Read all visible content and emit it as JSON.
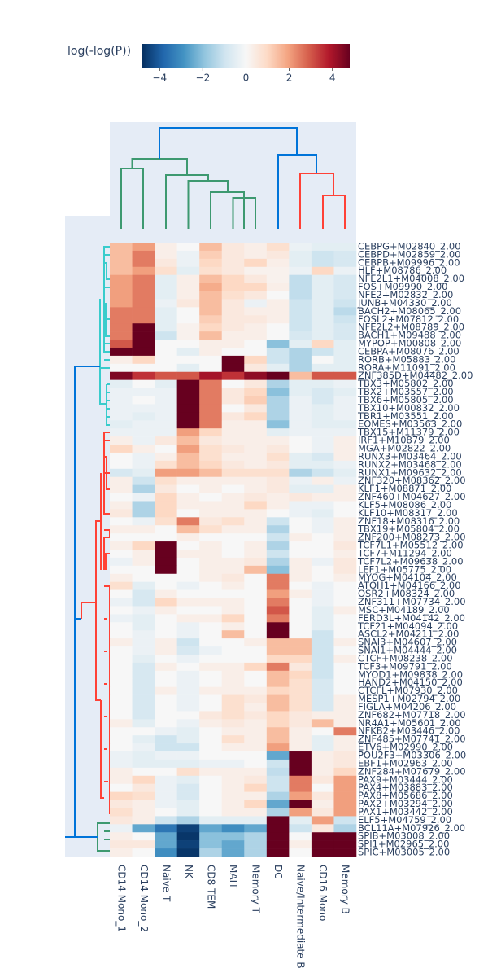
{
  "chart_data": {
    "type": "heatmap",
    "colorbar_title": "log(-log(P))",
    "zlim": [
      -4.8,
      4.8
    ],
    "colorbar_ticks": [
      {
        "value": -4,
        "label": "−4"
      },
      {
        "value": -2,
        "label": "−2"
      },
      0,
      2,
      4
    ],
    "colorscale": [
      "#053061",
      "#2166ac",
      "#4393c3",
      "#92c5de",
      "#d1e5f0",
      "#f7f7f7",
      "#fddbc7",
      "#f4a582",
      "#d6604d",
      "#b2182b",
      "#67001f"
    ],
    "x": [
      "CD14 Mono_1",
      "CD14 Mono_2",
      "Naive T",
      "NK",
      "CD8 TEM",
      "MAIT",
      "Memory T",
      "DC",
      "Naive/Intermediate B",
      "CD16 Mono",
      "Memory B"
    ],
    "y": [
      "CEBPG+M02840_2.00",
      "CEBPD+M02859_2.00",
      "CEBPB+M09996_2.00",
      "HLF+M08786_2.00",
      "NFE2L1+M04008_2.00",
      "FOS+M09990_2.00",
      "NFE2+M02832_2.00",
      "JUNB+M04330_2.00",
      "BACH2+M08065_2.00",
      "FOSL2+M07812_2.00",
      "NFE2L2+M08789_2.00",
      "BACH1+M09488_2.00",
      "MYPOP+M00808_2.00",
      "CEBPA+M08076_2.00",
      "RORB+M05883_2.00",
      "RORA+M11091_2.00",
      "ZNF385D+M04482_2.00",
      "TBX3+M05802_2.00",
      "TBX2+M03557_2.00",
      "TBX6+M05805_2.00",
      "TBX10+M00832_2.00",
      "TBR1+M03551_2.00",
      "EOMES+M03563_2.00",
      "TBX15+M11379_2.00",
      "IRF1+M10879_2.00",
      "MGA+M02822_2.00",
      "RUNX3+M03464_2.00",
      "RUNX2+M03468_2.00",
      "RUNX1+M09632_2.00",
      "ZNF320+M08362_2.00",
      "KLF1+M08871_2.00",
      "ZNF460+M04627_2.00",
      "KLF5+M08086_2.00",
      "KLF10+M08317_2.00",
      "ZNF18+M08316_2.00",
      "TBX19+M05804_2.00",
      "ZNF200+M08273_2.00",
      "TCF7L1+M05512_2.00",
      "TCF7+M11294_2.00",
      "TCF7L2+M09638_2.00",
      "LEF1+M05775_2.00",
      "MYOG+M04104_2.00",
      "ATOH1+M04166_2.00",
      "OSR2+M08324_2.00",
      "ZNF311+M07734_2.00",
      "MSC+M04189_2.00",
      "FERD3L+M04142_2.00",
      "TCF21+M04094_2.00",
      "ASCL2+M04211_2.00",
      "SNAI3+M04607_2.00",
      "SNAI1+M04444_2.00",
      "CTCF+M08238_2.00",
      "TCF3+M09791_2.00",
      "MYOD1+M09838_2.00",
      "HAND2+M04150_2.00",
      "CTCFL+M07930_2.00",
      "MESP1+M02794_2.00",
      "FIGLA+M04206_2.00",
      "ZNF682+M07718_2.00",
      "NR4A1+M05601_2.00",
      "NFKB2+M03446_2.00",
      "ZNF485+M07741_2.00",
      "ETV6+M02990_2.00",
      "POU2F3+M03306_2.00",
      "EBF1+M02963_2.00",
      "ZNF284+M07679_2.00",
      "PAX9+M03444_2.00",
      "PAX4+M03883_2.00",
      "PAX8+M05686_2.00",
      "PAX2+M03294_2.00",
      "PAX1+M03442_2.00",
      "ELF5+M04759_2.00",
      "BCL11A+M07926_2.00",
      "SPIB+M03008_2.00",
      "SPI1+M02965_2.00",
      "SPIC+M03005_2.00"
    ],
    "z": [
      [
        1.5,
        2,
        0.3,
        0,
        1.5,
        0.5,
        0.3,
        0.8,
        -0.3,
        -0.5,
        -0.5
      ],
      [
        1.5,
        2.5,
        0.3,
        -0.3,
        1.2,
        0.5,
        0.3,
        0.5,
        -0.5,
        -1,
        -0.8
      ],
      [
        1.5,
        2.5,
        0.5,
        -0.3,
        1,
        0.5,
        1,
        0.3,
        -0.5,
        -1,
        -0.8
      ],
      [
        1.5,
        2,
        0.8,
        -0.5,
        0.8,
        0.5,
        0.2,
        0.2,
        -0.3,
        1,
        -0.3
      ],
      [
        2,
        2.5,
        -0.5,
        0.3,
        1.5,
        1,
        0.5,
        0.2,
        -1.2,
        -0.5,
        -0.8
      ],
      [
        2,
        2.5,
        -0.5,
        0.3,
        1.8,
        1,
        1,
        0.3,
        -1.2,
        -0.5,
        -0.8
      ],
      [
        2,
        2.5,
        -0.5,
        0.3,
        1.5,
        0.8,
        0.5,
        0,
        -1.2,
        -0.5,
        -0.8
      ],
      [
        2,
        2.5,
        -0.3,
        0.5,
        1.5,
        0.5,
        -0.3,
        0.3,
        -1,
        -0.5,
        -1
      ],
      [
        2.5,
        2.5,
        -0.5,
        0,
        1.5,
        0.5,
        0.3,
        0.3,
        -1,
        -0.5,
        -1.3
      ],
      [
        2.5,
        2.5,
        -0.5,
        0,
        1.2,
        0.5,
        0.5,
        0.3,
        -1,
        -0.5,
        -1
      ],
      [
        2.5,
        4.8,
        -0.5,
        0.2,
        1,
        0.5,
        0.3,
        0,
        -1,
        -0.5,
        -0.8
      ],
      [
        2.5,
        4.8,
        -1,
        0.2,
        1.5,
        0.3,
        0.3,
        0,
        -0.8,
        -0.5,
        -0.8
      ],
      [
        3,
        4.8,
        0,
        0,
        0.3,
        0.3,
        0,
        -2,
        -0.5,
        1,
        -0.5
      ],
      [
        4.8,
        4.8,
        0,
        -0.5,
        0.3,
        0,
        0,
        -1,
        -1.5,
        -1,
        -0.5
      ],
      [
        0.3,
        1,
        0,
        0,
        0,
        4.8,
        1,
        -1,
        -1.5,
        0,
        -0.5
      ],
      [
        0,
        0,
        0,
        -0.5,
        0,
        4.8,
        0.5,
        -0.5,
        -1.5,
        -0.5,
        -0.5
      ],
      [
        4.5,
        3.5,
        3,
        3,
        4,
        3.5,
        4.3,
        4.8,
        1.5,
        3,
        3
      ],
      [
        -0.5,
        0,
        -0.5,
        4.8,
        2.5,
        0,
        0.5,
        -1.5,
        -0.5,
        -0.5,
        -0.3
      ],
      [
        -0.3,
        -0.3,
        -0.3,
        4.8,
        2.5,
        0.5,
        1,
        -2,
        -0.5,
        -0.8,
        -0.5
      ],
      [
        -0.3,
        0,
        -0.3,
        4.8,
        2.5,
        0.5,
        1.2,
        -1.5,
        -0.3,
        -0.8,
        -0.3
      ],
      [
        -0.3,
        -0.3,
        -0.3,
        4.8,
        2.5,
        0,
        0.5,
        -1.5,
        -0.3,
        -0.5,
        -0.3
      ],
      [
        -0.3,
        -0.5,
        -0.3,
        4.8,
        2.5,
        0.5,
        1,
        -1.5,
        -0.3,
        -0.5,
        -0.3
      ],
      [
        -0.5,
        -0.3,
        -0.3,
        4.8,
        2.5,
        0.3,
        0.3,
        -2,
        -0.3,
        -0.5,
        -0.5
      ],
      [
        -0.3,
        -0.3,
        -0.3,
        2,
        1,
        0.3,
        0.3,
        -0.5,
        -0.3,
        -0.3,
        -0.3
      ],
      [
        0.3,
        -0.3,
        0.5,
        1.5,
        0.5,
        0.3,
        0.3,
        0.3,
        0,
        -0.3,
        0.3
      ],
      [
        1,
        0.3,
        0,
        2,
        0.8,
        0.5,
        0.3,
        0.5,
        0,
        -0.3,
        0.3
      ],
      [
        0,
        -0.3,
        0.3,
        1.5,
        0.8,
        0.3,
        0.3,
        0.8,
        -0.5,
        -0.8,
        0.3
      ],
      [
        0,
        -0.3,
        0.8,
        1.5,
        1,
        0.5,
        0.3,
        0.5,
        -0.5,
        -0.5,
        -0.3
      ],
      [
        -0.8,
        -0.5,
        2,
        2,
        1.5,
        0.8,
        0.8,
        0.8,
        -1.5,
        -1,
        -0.5
      ],
      [
        0.3,
        -1,
        0.8,
        0.3,
        0.3,
        0.3,
        0.3,
        0.5,
        -0.3,
        0.3,
        -0.3
      ],
      [
        0.3,
        -1.5,
        0.5,
        0,
        0.3,
        0,
        0.3,
        0.5,
        -0.5,
        -0.5,
        0.3
      ],
      [
        0,
        -0.3,
        1,
        0.3,
        0,
        0.3,
        0.5,
        0.3,
        0.5,
        0.3,
        0.3
      ],
      [
        0.3,
        -1.5,
        1,
        0.3,
        0.3,
        0.3,
        1,
        0.3,
        -0.3,
        -0.3,
        0
      ],
      [
        0.5,
        -1.5,
        1,
        0,
        0.3,
        0.3,
        0.3,
        0,
        -0.3,
        -0.5,
        0
      ],
      [
        0,
        -0.3,
        0.8,
        2.5,
        0.5,
        0.8,
        0.3,
        -1,
        0,
        -0.3,
        0.3
      ],
      [
        0.3,
        0.3,
        0,
        1.5,
        0.8,
        0.3,
        0.3,
        -1.5,
        0,
        -0.3,
        0.3
      ],
      [
        0,
        0,
        0,
        0.3,
        0,
        0,
        0,
        -1,
        0.3,
        0,
        0.3
      ],
      [
        0.3,
        1,
        4.8,
        0,
        0.3,
        0,
        0.3,
        -1.5,
        0,
        0,
        0.5
      ],
      [
        0,
        0.3,
        4.8,
        0.3,
        0.3,
        0,
        0.3,
        -1,
        0,
        0,
        0.3
      ],
      [
        -0.3,
        0.3,
        4.8,
        0,
        0.3,
        0.3,
        0.5,
        -1.5,
        0.3,
        -0.3,
        0.5
      ],
      [
        0,
        0,
        4.8,
        0,
        0.3,
        0.3,
        1.5,
        -2,
        0.3,
        0,
        0.5
      ],
      [
        0.3,
        0,
        0,
        0,
        0.3,
        0.5,
        0,
        2.5,
        0.3,
        0,
        0.3
      ],
      [
        0.8,
        -0.5,
        0,
        -0.3,
        0,
        0.3,
        0,
        2.5,
        0,
        -0.3,
        0
      ],
      [
        0,
        -0.8,
        0.3,
        0,
        0,
        0,
        0,
        2,
        0.3,
        -0.3,
        0
      ],
      [
        -0.3,
        -0.8,
        1,
        0.3,
        0.3,
        0.3,
        0,
        2.5,
        0,
        -0.3,
        0
      ],
      [
        0,
        -0.3,
        0.3,
        0,
        0,
        0.3,
        0,
        3,
        0,
        -0.5,
        0.3
      ],
      [
        -0.3,
        -0.5,
        0,
        0.3,
        0.3,
        1,
        0,
        2.5,
        0,
        -0.5,
        0
      ],
      [
        0,
        -0.5,
        0,
        -0.3,
        0,
        0.3,
        0,
        4.8,
        0,
        -0.5,
        0
      ],
      [
        0,
        -0.3,
        0,
        -0.3,
        0,
        1.5,
        0,
        4.8,
        0,
        -1,
        0
      ],
      [
        0.3,
        -0.3,
        0.3,
        -1,
        0,
        0,
        0.3,
        1.5,
        1.5,
        -1,
        0.3
      ],
      [
        0,
        -0.3,
        0.3,
        -0.8,
        -0.3,
        0,
        0,
        1.5,
        1.5,
        -1,
        0
      ],
      [
        0,
        -0.5,
        0,
        -0.3,
        0,
        0,
        0,
        1,
        1,
        -1,
        0.3
      ],
      [
        0,
        -0.8,
        0.3,
        0,
        0.3,
        0.3,
        1,
        2.5,
        0.5,
        -1,
        0
      ],
      [
        0,
        -0.8,
        0,
        -0.3,
        0,
        0.3,
        0,
        1.5,
        1,
        -1,
        0
      ],
      [
        0,
        -0.8,
        0,
        -0.3,
        0,
        0.3,
        0,
        1.5,
        0.8,
        -0.8,
        0
      ],
      [
        0,
        -0.8,
        0.3,
        -0.3,
        0.3,
        0.3,
        0.3,
        1,
        0.8,
        -0.8,
        0
      ],
      [
        0,
        -0.8,
        0,
        -0.3,
        0,
        0.8,
        0.5,
        1.5,
        0.8,
        -0.8,
        0.3
      ],
      [
        0,
        -0.8,
        0,
        -0.3,
        0,
        0.8,
        0.3,
        1.5,
        0.8,
        -0.8,
        0.3
      ],
      [
        0,
        -0.8,
        0,
        0,
        0.5,
        0.8,
        0.5,
        1,
        0.5,
        0.3,
        0.3
      ],
      [
        0.3,
        -0.5,
        0,
        -0.3,
        0.3,
        0.5,
        0.3,
        1,
        0.5,
        1.5,
        0.3
      ],
      [
        0,
        0,
        -0.3,
        -0.5,
        0,
        0.3,
        0.3,
        1.5,
        0.3,
        0,
        2.5
      ],
      [
        0,
        -0.5,
        -1,
        -0.5,
        0,
        0.8,
        0.3,
        1.5,
        0.3,
        -0.5,
        0.3
      ],
      [
        0,
        -0.3,
        -1,
        -1,
        0,
        0.3,
        0.3,
        2,
        0.3,
        -0.5,
        0.3
      ],
      [
        -0.3,
        -0.5,
        -0.3,
        -0.3,
        0,
        0,
        0,
        -2.5,
        4.8,
        0.3,
        0.5
      ],
      [
        -0.3,
        -0.5,
        -0.5,
        -0.5,
        -0.3,
        -0.3,
        0,
        -1,
        4.8,
        0.3,
        0.5
      ],
      [
        0.3,
        0,
        0,
        0.8,
        0.3,
        0.3,
        0.3,
        -1.2,
        4.8,
        0.3,
        1
      ],
      [
        0.3,
        1,
        -0.3,
        -0.5,
        0,
        0.3,
        0.5,
        -1,
        2.5,
        0.5,
        2
      ],
      [
        0,
        0.5,
        -0.3,
        -0.8,
        0,
        0.3,
        1,
        -1,
        2.5,
        0,
        2
      ],
      [
        1,
        0.8,
        -0.3,
        -0.8,
        0,
        0.3,
        0.3,
        -1.5,
        2,
        0.5,
        2
      ],
      [
        0.5,
        0.3,
        -0.3,
        -0.5,
        0,
        0.3,
        1,
        -2.5,
        4.8,
        0.3,
        2
      ],
      [
        0.8,
        0.3,
        0,
        -0.5,
        0,
        0.3,
        0.3,
        -1.5,
        2,
        0.5,
        2
      ],
      [
        0.5,
        0.3,
        -1,
        -1.5,
        -0.5,
        -0.5,
        -0.5,
        4.8,
        -0.5,
        2,
        -1
      ],
      [
        -0.3,
        -2.5,
        -3.5,
        -4.5,
        -2.5,
        -3,
        -2.5,
        4.8,
        -1,
        0.5,
        -1.5
      ],
      [
        0.3,
        0,
        -2.5,
        -4.7,
        -2,
        -2,
        -1.5,
        4.8,
        0,
        4.8,
        4.8
      ],
      [
        0.5,
        0.5,
        -2.5,
        -4.5,
        -2,
        -2.5,
        -1.5,
        4.8,
        0.3,
        4.8,
        4.8
      ],
      [
        0.3,
        0,
        -3,
        -4.7,
        -1.5,
        -2.5,
        -1.5,
        4.8,
        0,
        4.8,
        4.8
      ]
    ]
  }
}
